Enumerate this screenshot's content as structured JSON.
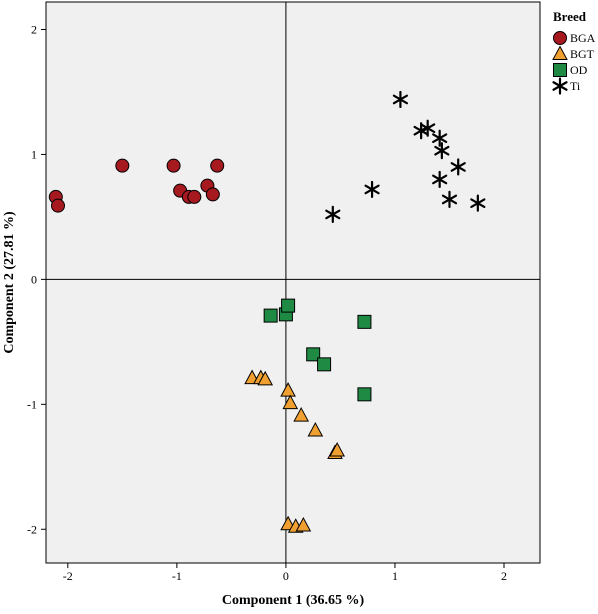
{
  "chart_data": {
    "type": "scatter",
    "xlabel": "Component 1 (36.65 %)",
    "ylabel": "Component 2 (27.81 %)",
    "xlim": [
      -2.2,
      2.33
    ],
    "ylim": [
      -2.27,
      2.22
    ],
    "xticks": [
      -2,
      -1,
      0,
      1,
      2
    ],
    "yticks": [
      -2,
      -1,
      0,
      1,
      2
    ],
    "xtick_labels": [
      "-2",
      "-1",
      "0",
      "1",
      "2"
    ],
    "ytick_labels": [
      "-2",
      "-1",
      "0",
      "1",
      "2"
    ],
    "reference_lines": {
      "x": 0,
      "y": 0
    },
    "grid": false,
    "plot_background": "#f0f0f0",
    "legend": {
      "title": "Breed",
      "placement": "right-top",
      "entries": [
        "BGA",
        "BGT",
        "OD",
        "Ti"
      ]
    },
    "series": [
      {
        "name": "BGA",
        "marker": "circle",
        "color": "#a6191f",
        "points": [
          [
            -2.11,
            0.66
          ],
          [
            -2.09,
            0.59
          ],
          [
            -1.5,
            0.91
          ],
          [
            -1.03,
            0.91
          ],
          [
            -0.97,
            0.71
          ],
          [
            -0.89,
            0.66
          ],
          [
            -0.84,
            0.66
          ],
          [
            -0.72,
            0.75
          ],
          [
            -0.67,
            0.68
          ],
          [
            -0.63,
            0.91
          ]
        ]
      },
      {
        "name": "BGT",
        "marker": "triangle",
        "color": "#f0a030",
        "points": [
          [
            -0.31,
            -0.79
          ],
          [
            -0.23,
            -0.79
          ],
          [
            -0.19,
            -0.8
          ],
          [
            0.02,
            -0.89
          ],
          [
            0.04,
            -0.99
          ],
          [
            0.14,
            -1.09
          ],
          [
            0.27,
            -1.21
          ],
          [
            0.45,
            -1.39
          ],
          [
            0.47,
            -1.37
          ],
          [
            0.02,
            -1.96
          ],
          [
            0.09,
            -1.98
          ],
          [
            0.16,
            -1.97
          ]
        ]
      },
      {
        "name": "OD",
        "marker": "square",
        "color": "#1e8a44",
        "points": [
          [
            -0.14,
            -0.29
          ],
          [
            0.0,
            -0.28
          ],
          [
            0.02,
            -0.21
          ],
          [
            0.25,
            -0.6
          ],
          [
            0.35,
            -0.68
          ],
          [
            0.72,
            -0.34
          ],
          [
            0.72,
            -0.92
          ]
        ]
      },
      {
        "name": "Ti",
        "marker": "star",
        "color": "#000000",
        "points": [
          [
            0.43,
            0.52
          ],
          [
            0.79,
            0.72
          ],
          [
            1.05,
            1.44
          ],
          [
            1.24,
            1.19
          ],
          [
            1.3,
            1.21
          ],
          [
            1.41,
            1.13
          ],
          [
            1.43,
            1.03
          ],
          [
            1.41,
            0.8
          ],
          [
            1.5,
            0.64
          ],
          [
            1.58,
            0.9
          ],
          [
            1.76,
            0.61
          ]
        ]
      }
    ]
  }
}
